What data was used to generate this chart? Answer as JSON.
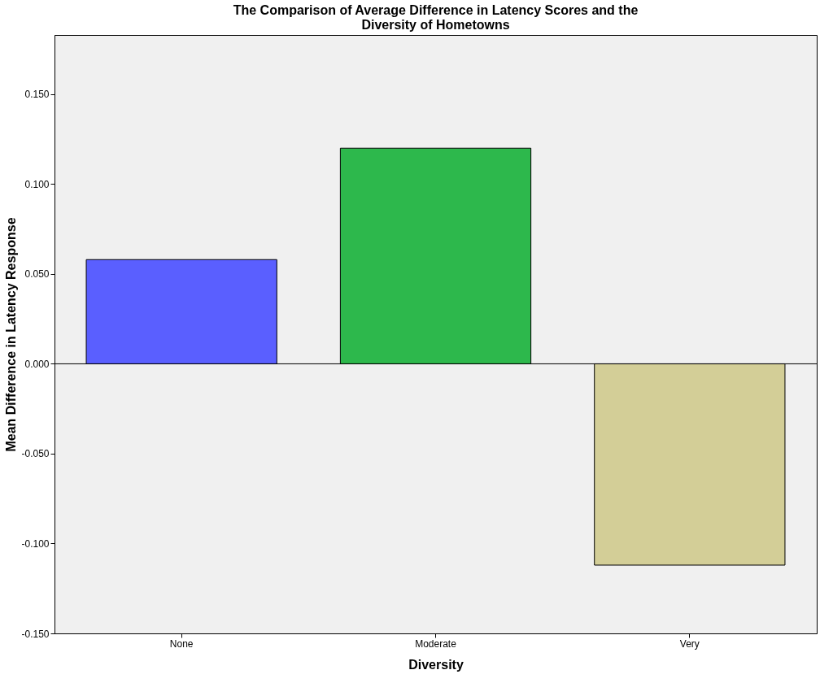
{
  "chart_data": {
    "type": "bar",
    "title": "The Comparison of Average Difference in Latency Scores and the\nDiversity of Hometowns",
    "xlabel": "Diversity",
    "ylabel": "Mean Difference in Latency Response",
    "categories": [
      "None",
      "Moderate",
      "Very"
    ],
    "values": [
      0.058,
      0.12,
      -0.112
    ],
    "colors": [
      "#5a5fff",
      "#2db84c",
      "#d3ce97"
    ],
    "ylim": [
      -0.15,
      0.183
    ],
    "yticks": [
      {
        "value": -0.15,
        "label": "-0.150"
      },
      {
        "value": -0.1,
        "label": "-0.100"
      },
      {
        "value": -0.05,
        "label": "-0.050"
      },
      {
        "value": 0,
        "label": "0.000"
      },
      {
        "value": 0.05,
        "label": "0.050"
      },
      {
        "value": 0.1,
        "label": "0.100"
      },
      {
        "value": 0.15,
        "label": "0.150"
      }
    ],
    "ref_lines": [
      {
        "axis": "y",
        "value": 0,
        "color": "#000000"
      }
    ],
    "grid": false
  }
}
